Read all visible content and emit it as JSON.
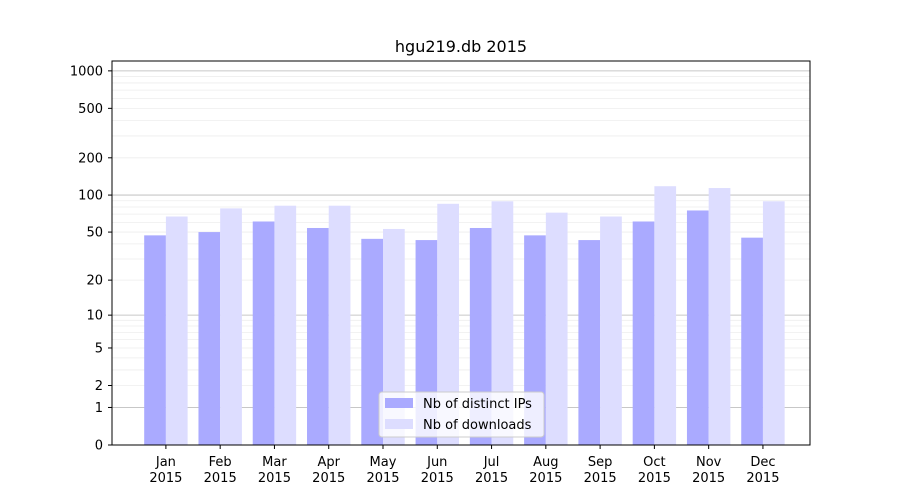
{
  "chart_data": {
    "type": "bar",
    "title": "hgu219.db 2015",
    "xlabel": "",
    "ylabel": "",
    "y_scale": "log1p",
    "ylim": [
      0,
      1200
    ],
    "yticks": [
      "0",
      "1",
      "2",
      "5",
      "10",
      "20",
      "50",
      "100",
      "200",
      "500",
      "1000"
    ],
    "grid": "horizontal",
    "legend_position": "bottom-center",
    "categories": [
      [
        "Jan",
        "2015"
      ],
      [
        "Feb",
        "2015"
      ],
      [
        "Mar",
        "2015"
      ],
      [
        "Apr",
        "2015"
      ],
      [
        "May",
        "2015"
      ],
      [
        "Jun",
        "2015"
      ],
      [
        "Jul",
        "2015"
      ],
      [
        "Aug",
        "2015"
      ],
      [
        "Sep",
        "2015"
      ],
      [
        "Oct",
        "2015"
      ],
      [
        "Nov",
        "2015"
      ],
      [
        "Dec",
        "2015"
      ]
    ],
    "series": [
      {
        "name": "Nb of distinct IPs",
        "color": "#aaaaff",
        "values": [
          47,
          50,
          61,
          54,
          44,
          43,
          54,
          47,
          43,
          61,
          75,
          45
        ]
      },
      {
        "name": "Nb of downloads",
        "color": "#ddddff",
        "values": [
          67,
          78,
          82,
          82,
          53,
          85,
          89,
          72,
          67,
          118,
          114,
          89
        ]
      }
    ]
  }
}
